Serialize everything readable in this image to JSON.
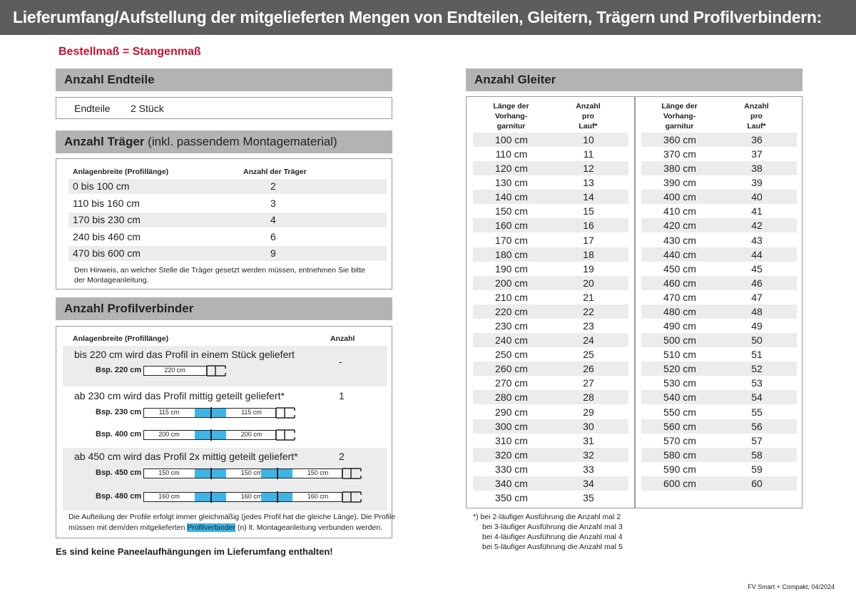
{
  "title": "Lieferumfang/Aufstellung der mitgelieferten Mengen von Endteilen, Gleitern, Trägern und Profilverbindern:",
  "subtitle": "Bestellmaß = Stangenmaß",
  "endteile": {
    "header": "Anzahl Endteile",
    "label": "Endteile",
    "value": "2 Stück"
  },
  "traeger": {
    "header_bold": "Anzahl Träger",
    "header_normal": "(inkl. passendem Montagematerial)",
    "col1": "Anlagenbreite (Profillänge)",
    "col2": "Anzahl der Träger",
    "rows": [
      {
        "range": "0 bis 100 cm",
        "count": "2"
      },
      {
        "range": "110 bis 160 cm",
        "count": "3"
      },
      {
        "range": "170 bis 230 cm",
        "count": "4"
      },
      {
        "range": "240 bis 460 cm",
        "count": "6"
      },
      {
        "range": "470 bis 600 cm",
        "count": "9"
      }
    ],
    "note1": "Den Hinweis, an welcher Stelle die Träger gesetzt werden müssen, entnehmen Sie bitte",
    "note2": "der Montageanleitung."
  },
  "profil": {
    "header": "Anzahl Profilverbinder",
    "col1": "Anlagenbreite (Profillänge)",
    "col2": "Anzahl",
    "groups": [
      {
        "text": "bis 220 cm wird das Profil in einem Stück geliefert",
        "count": "-",
        "examples": [
          {
            "label": "Bsp. 220 cm",
            "segments": [
              "220 cm"
            ]
          }
        ]
      },
      {
        "text": "ab 230 cm wird das Profil mittig geteilt geliefert*",
        "count": "1",
        "examples": [
          {
            "label": "Bsp. 230 cm",
            "segments": [
              "115 cm",
              "115 cm"
            ]
          },
          {
            "label": "Bsp. 400 cm",
            "segments": [
              "200 cm",
              "200 cm"
            ]
          }
        ]
      },
      {
        "text": "ab 450 cm wird das Profil 2x mittig geteilt geliefert*",
        "count": "2",
        "examples": [
          {
            "label": "Bsp. 450 cm",
            "segments": [
              "150 cm",
              "150 cm",
              "150 cm"
            ]
          },
          {
            "label": "Bsp. 480 cm",
            "segments": [
              "160 cm",
              "160 cm",
              "160 cm"
            ]
          }
        ]
      }
    ],
    "note1": "Die Aufteilung der Profile erfolgt immer gleichmäßig (jedes Profil hat die gleiche Länge). Die Profile",
    "note2a": "müssen mit dem/den mitgelieferten",
    "note2hl": "Profilverbinder",
    "note2b": "(n) lt. Montageanleitung verbunden werden."
  },
  "no_panel": "Es sind keine Paneelaufhängungen im Lieferumfang enthalten!",
  "gleiter": {
    "header": "Anzahl Gleiter",
    "col1": "Länge der\nVorhang-\ngarnitur",
    "col2": "Anzahl\npro\nLauf*",
    "left": [
      [
        "100 cm",
        "10"
      ],
      [
        "110 cm",
        "11"
      ],
      [
        "120 cm",
        "12"
      ],
      [
        "130 cm",
        "13"
      ],
      [
        "140 cm",
        "14"
      ],
      [
        "150 cm",
        "15"
      ],
      [
        "160 cm",
        "16"
      ],
      [
        "170 cm",
        "17"
      ],
      [
        "180 cm",
        "18"
      ],
      [
        "190 cm",
        "19"
      ],
      [
        "200 cm",
        "20"
      ],
      [
        "210 cm",
        "21"
      ],
      [
        "220 cm",
        "22"
      ],
      [
        "230 cm",
        "23"
      ],
      [
        "240 cm",
        "24"
      ],
      [
        "250 cm",
        "25"
      ],
      [
        "260 cm",
        "26"
      ],
      [
        "270 cm",
        "27"
      ],
      [
        "280 cm",
        "28"
      ],
      [
        "290 cm",
        "29"
      ],
      [
        "300 cm",
        "30"
      ],
      [
        "310 cm",
        "31"
      ],
      [
        "320 cm",
        "32"
      ],
      [
        "330 cm",
        "33"
      ],
      [
        "340 cm",
        "34"
      ],
      [
        "350 cm",
        "35"
      ]
    ],
    "right": [
      [
        "360 cm",
        "36"
      ],
      [
        "370 cm",
        "37"
      ],
      [
        "380 cm",
        "38"
      ],
      [
        "390 cm",
        "39"
      ],
      [
        "400 cm",
        "40"
      ],
      [
        "410 cm",
        "41"
      ],
      [
        "420 cm",
        "42"
      ],
      [
        "430 cm",
        "43"
      ],
      [
        "440 cm",
        "44"
      ],
      [
        "450 cm",
        "45"
      ],
      [
        "460 cm",
        "46"
      ],
      [
        "470 cm",
        "47"
      ],
      [
        "480 cm",
        "48"
      ],
      [
        "490 cm",
        "49"
      ],
      [
        "500 cm",
        "50"
      ],
      [
        "510 cm",
        "51"
      ],
      [
        "520 cm",
        "52"
      ],
      [
        "530 cm",
        "53"
      ],
      [
        "540 cm",
        "54"
      ],
      [
        "550 cm",
        "55"
      ],
      [
        "560 cm",
        "56"
      ],
      [
        "570 cm",
        "57"
      ],
      [
        "580 cm",
        "58"
      ],
      [
        "590 cm",
        "59"
      ],
      [
        "600 cm",
        "60"
      ]
    ],
    "footnotes": [
      "*)  bei 2-läufiger Ausführung die Anzahl mal 2",
      "bei 3-läufiger Ausführung die Anzahl mal 3",
      "bei 4-läufiger Ausführung die Anzahl mal 4",
      "bei 5-läufiger Ausführung die Anzahl mal 5"
    ]
  },
  "footer": "FV Smart + Compakt, 04/2024",
  "colors": {
    "accent": "#c8102e",
    "connector": "#3db4e5",
    "header_bar": "#5d5d5d",
    "section": "#b3b3b3"
  }
}
